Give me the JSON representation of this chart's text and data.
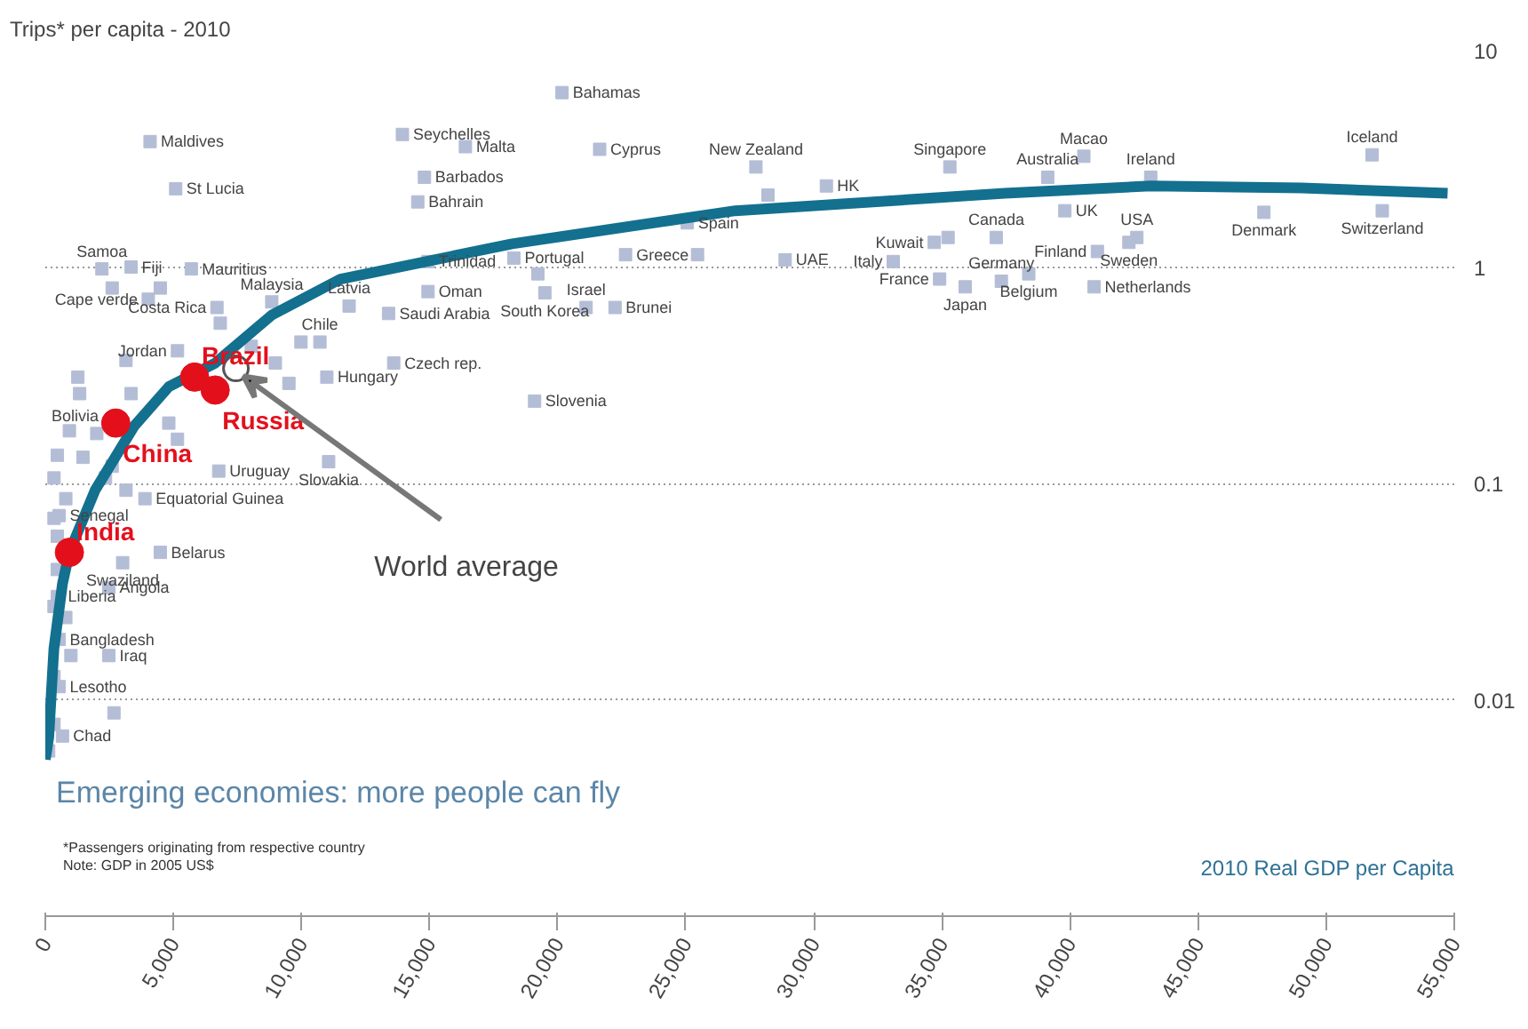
{
  "chart_data": {
    "type": "scatter",
    "title": "Trips* per capita - 2010",
    "xlabel": "2010 Real GDP per Capita",
    "log": "y",
    "grid": "y",
    "xlim": [
      0,
      55000
    ],
    "ylim": [
      0.001,
      10
    ],
    "xticks": [
      0,
      {
        "value": 5000,
        "label": "5,000"
      },
      {
        "value": 10000,
        "label": "10,000"
      },
      {
        "value": 15000,
        "label": "15,000"
      },
      {
        "value": 20000,
        "label": "20,000"
      },
      {
        "value": 25000,
        "label": "25,000"
      },
      {
        "value": 30000,
        "label": "30,000"
      },
      {
        "value": 35000,
        "label": "35,000"
      },
      {
        "value": 40000,
        "label": "40,000"
      },
      {
        "value": 45000,
        "label": "45,000"
      },
      {
        "value": 50000,
        "label": "50,000"
      },
      {
        "value": 55000,
        "label": "55,000"
      }
    ],
    "yticks": [
      0.01,
      0.1,
      1,
      10
    ],
    "series": [
      {
        "marker": "square",
        "color": "#b4bdd6",
        "x": [
          20170,
          13940,
          16400,
          21640,
          4090,
          5090,
          14800,
          14540,
          25060,
          2210,
          3350,
          5700,
          8840,
          14940,
          18290,
          22650,
          21110,
          22240,
          11860,
          14940,
          13400,
          10720,
          13600,
          19500,
          19100,
          10990,
          11060,
          6770,
          4020,
          6700,
          5160,
          2010,
          3890,
          540,
          4490,
          2480,
          470,
          3020,
          540,
          2480,
          540,
          670,
          27740,
          28880,
          30490,
          35310,
          39130,
          40540,
          43150,
          51790,
          37120,
          39800,
          34700,
          33100,
          34910,
          35910,
          37320,
          38390,
          41070,
          40940,
          42610,
          42300,
          47570,
          52190,
          2610,
          4490,
          6830,
          8040,
          8980,
          9510,
          1270,
          3150,
          1340,
          3350,
          4820,
          940,
          470,
          1470,
          2610,
          5160,
          340,
          2350,
          800,
          3150,
          340,
          470,
          470,
          340,
          800,
          1000,
          340,
          2680,
          340,
          130,
          19230,
          25460,
          28210,
          35240,
          9980
        ],
        "values": [
          6.4,
          4.1,
          3.6,
          3.5,
          3.8,
          2.3,
          2.6,
          2.0,
          1.6,
          0.98,
          1.0,
          0.98,
          0.69,
          1.06,
          1.1,
          1.14,
          0.65,
          0.65,
          0.66,
          0.77,
          0.61,
          0.45,
          0.36,
          0.76,
          0.24,
          0.31,
          0.126,
          0.114,
          0.71,
          0.65,
          0.41,
          0.17,
          0.085,
          0.071,
          0.048,
          0.033,
          0.03,
          0.043,
          0.019,
          0.016,
          0.0115,
          0.0068,
          2.9,
          1.08,
          2.37,
          2.9,
          2.6,
          3.25,
          2.6,
          3.3,
          1.37,
          1.82,
          1.3,
          1.06,
          0.88,
          0.81,
          0.86,
          0.93,
          1.18,
          0.81,
          1.37,
          1.3,
          1.79,
          1.82,
          0.8,
          0.8,
          0.55,
          0.43,
          0.36,
          0.29,
          0.31,
          0.37,
          0.26,
          0.26,
          0.19,
          0.175,
          0.135,
          0.132,
          0.12,
          0.16,
          0.106,
          0.106,
          0.085,
          0.093,
          0.069,
          0.057,
          0.04,
          0.027,
          0.024,
          0.016,
          0.0128,
          0.0087,
          0.0077,
          0.0058,
          0.93,
          1.14,
          2.15,
          1.37,
          0.45
        ]
      },
      {
        "type": "line",
        "marker": "none",
        "color": "#13708f",
        "x": [
          0,
          134,
          335,
          670,
          938,
          1943,
          3484,
          4824,
          6633,
          8844,
          11524,
          18224,
          26934,
          37453,
          43148,
          49044,
          54739
        ],
        "values": [
          0.0053,
          0.0067,
          0.0172,
          0.0344,
          0.048,
          0.093,
          0.185,
          0.28,
          0.36,
          0.6,
          0.88,
          1.28,
          1.82,
          2.19,
          2.37,
          2.32,
          2.19
        ]
      },
      {
        "type": "scatter",
        "marker": "circle",
        "color": "#e3101c",
        "x": [
          940,
          2750,
          5830,
          6630
        ],
        "values": [
          0.048,
          0.19,
          0.31,
          0.27
        ]
      },
      {
        "type": "scatter",
        "marker": "circle",
        "color": "#555555",
        "x": [
          7440
        ],
        "values": [
          0.34
        ]
      }
    ],
    "annotations": [
      "Emerging economies: more people can fly",
      "*Passengers originating from respective country",
      "Note: GDP in 2005 US$",
      {
        "text": "Bahamas",
        "x": 20170,
        "y": 6.4
      },
      {
        "text": "Seychelles",
        "x": 13940,
        "y": 4.1
      },
      {
        "text": "Malta",
        "x": 16400,
        "y": 3.6
      },
      {
        "text": "Cyprus",
        "x": 21640,
        "y": 3.5
      },
      {
        "text": "Maldives",
        "x": 4090,
        "y": 3.8
      },
      {
        "text": "St Lucia",
        "x": 5090,
        "y": 2.3
      },
      {
        "text": "Barbados",
        "x": 14800,
        "y": 2.6
      },
      {
        "text": "Bahrain",
        "x": 14540,
        "y": 2.0
      },
      {
        "text": "Spain",
        "x": 25060,
        "y": 1.6
      },
      {
        "text": "Samoa",
        "x": 2210,
        "y": 0.98
      },
      {
        "text": "Fiji",
        "x": 3350,
        "y": 1.0
      },
      {
        "text": "Mauritius",
        "x": 5700,
        "y": 0.98
      },
      {
        "text": "Malaysia",
        "x": 8840,
        "y": 0.69
      },
      {
        "text": "Trinidad",
        "x": 14940,
        "y": 1.06
      },
      {
        "text": "Portugal",
        "x": 18290,
        "y": 1.1
      },
      {
        "text": "Greece",
        "x": 22650,
        "y": 1.14
      },
      {
        "text": "Israel",
        "x": 21110,
        "y": 0.65
      },
      {
        "text": "Brunei",
        "x": 22240,
        "y": 0.65
      },
      {
        "text": "Latvia",
        "x": 11860,
        "y": 0.66
      },
      {
        "text": "Oman",
        "x": 14940,
        "y": 0.77
      },
      {
        "text": "Saudi Arabia",
        "x": 13400,
        "y": 0.61
      },
      {
        "text": "Chile",
        "x": 10720,
        "y": 0.45
      },
      {
        "text": "Czech rep.",
        "x": 13600,
        "y": 0.36
      },
      {
        "text": "South Korea",
        "x": 19500,
        "y": 0.76
      },
      {
        "text": "Slovenia",
        "x": 19100,
        "y": 0.24
      },
      {
        "text": "Hungary",
        "x": 10990,
        "y": 0.31
      },
      {
        "text": "Slovakia",
        "x": 11060,
        "y": 0.126
      },
      {
        "text": "Uruguay",
        "x": 6770,
        "y": 0.114
      },
      {
        "text": "Cape verde",
        "x": 4020,
        "y": 0.71
      },
      {
        "text": "Costa Rica",
        "x": 6700,
        "y": 0.65
      },
      {
        "text": "Jordan",
        "x": 5160,
        "y": 0.41
      },
      {
        "text": "Bolivia",
        "x": 2010,
        "y": 0.17
      },
      {
        "text": "Equatorial Guinea",
        "x": 3890,
        "y": 0.085
      },
      {
        "text": "Senegal",
        "x": 540,
        "y": 0.071
      },
      {
        "text": "Belarus",
        "x": 4490,
        "y": 0.048
      },
      {
        "text": "Angola",
        "x": 2480,
        "y": 0.033
      },
      {
        "text": "Liberia",
        "x": 470,
        "y": 0.03
      },
      {
        "text": "Swaziland",
        "x": 3020,
        "y": 0.043
      },
      {
        "text": "Bangladesh",
        "x": 540,
        "y": 0.019
      },
      {
        "text": "Iraq",
        "x": 2480,
        "y": 0.016
      },
      {
        "text": "Lesotho",
        "x": 540,
        "y": 0.0115
      },
      {
        "text": "Chad",
        "x": 670,
        "y": 0.0068
      },
      {
        "text": "New Zealand",
        "x": 27740,
        "y": 2.9
      },
      {
        "text": "UAE",
        "x": 28880,
        "y": 1.08
      },
      {
        "text": "HK",
        "x": 30490,
        "y": 2.37
      },
      {
        "text": "Singapore",
        "x": 35310,
        "y": 2.9
      },
      {
        "text": "Australia",
        "x": 39130,
        "y": 2.6
      },
      {
        "text": "Macao",
        "x": 40540,
        "y": 3.25
      },
      {
        "text": "Ireland",
        "x": 43150,
        "y": 2.6
      },
      {
        "text": "Iceland",
        "x": 51790,
        "y": 3.3
      },
      {
        "text": "Canada",
        "x": 37120,
        "y": 1.37
      },
      {
        "text": "UK",
        "x": 39800,
        "y": 1.82
      },
      {
        "text": "Kuwait",
        "x": 34700,
        "y": 1.3
      },
      {
        "text": "Italy",
        "x": 33100,
        "y": 1.06
      },
      {
        "text": "France",
        "x": 34910,
        "y": 0.88
      },
      {
        "text": "Japan",
        "x": 35910,
        "y": 0.81
      },
      {
        "text": "Germany",
        "x": 37320,
        "y": 0.86
      },
      {
        "text": "Belgium",
        "x": 38390,
        "y": 0.93
      },
      {
        "text": "Finland",
        "x": 41070,
        "y": 1.18
      },
      {
        "text": "Netherlands",
        "x": 40940,
        "y": 0.81
      },
      {
        "text": "USA",
        "x": 42610,
        "y": 1.37
      },
      {
        "text": "Sweden",
        "x": 42300,
        "y": 1.3
      },
      {
        "text": "Denmark",
        "x": 47570,
        "y": 1.79
      },
      {
        "text": "Switzerland",
        "x": 52190,
        "y": 1.82
      },
      {
        "text": "India",
        "x": 940,
        "y": 0.048
      },
      {
        "text": "China",
        "x": 2750,
        "y": 0.19
      },
      {
        "text": "Brazil",
        "x": 5830,
        "y": 0.31
      },
      {
        "text": "Russia",
        "x": 6630,
        "y": 0.27
      },
      {
        "text": "World average",
        "x": 7440,
        "y": 0.34
      }
    ]
  }
}
